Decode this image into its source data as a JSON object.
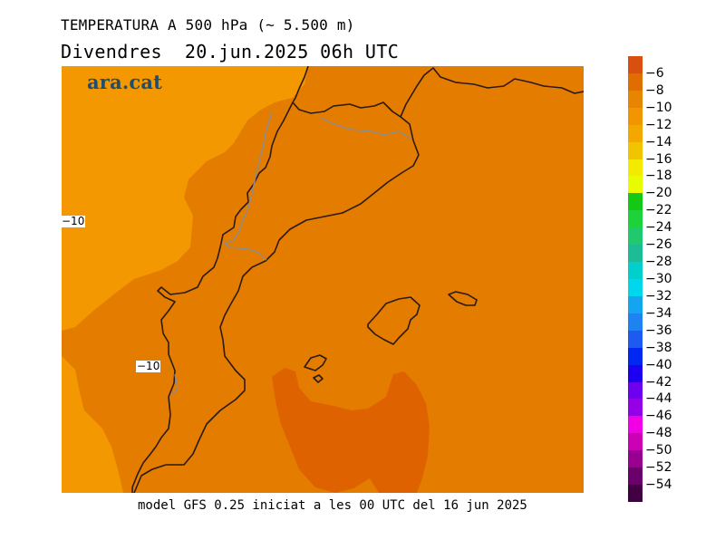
{
  "header": {
    "title": "TEMPERATURA A 500 hPa (~ 5.500 m)",
    "subtitle": "Divendres  20.jun.2025 06h UTC"
  },
  "brand": "ara.cat",
  "footer": "model GFS 0.25 iniciat a les 00 UTC del 16 jun 2025",
  "map": {
    "contour_labels": [
      "−10",
      "−10"
    ],
    "field_colors": {
      "minus12_band": "#f39800",
      "minus10_band": "#e47c00",
      "minus8_band": "#de6200",
      "coastline": "#2b1a10",
      "border": "#8c8c8c"
    }
  },
  "colorbar": {
    "labels": [
      "−6",
      "−8",
      "−10",
      "−12",
      "−14",
      "−16",
      "−18",
      "−20",
      "−22",
      "−24",
      "−26",
      "−28",
      "−30",
      "−32",
      "−34",
      "−36",
      "−38",
      "−40",
      "−42",
      "−44",
      "−46",
      "−48",
      "−50",
      "−52",
      "−54"
    ],
    "colors": [
      "#d84f0f",
      "#e06d00",
      "#e78400",
      "#f19500",
      "#f3a800",
      "#f1c400",
      "#f4ea00",
      "#e8fb00",
      "#15c815",
      "#1ed23c",
      "#20c86e",
      "#1ebc96",
      "#00cfcc",
      "#00d6ec",
      "#14a5f0",
      "#1e82f0",
      "#1e5af0",
      "#0028f0",
      "#1e00f0",
      "#6e00f0",
      "#9600e6",
      "#f000e6",
      "#cc00b4",
      "#9a0090",
      "#6a006a",
      "#420042"
    ]
  }
}
